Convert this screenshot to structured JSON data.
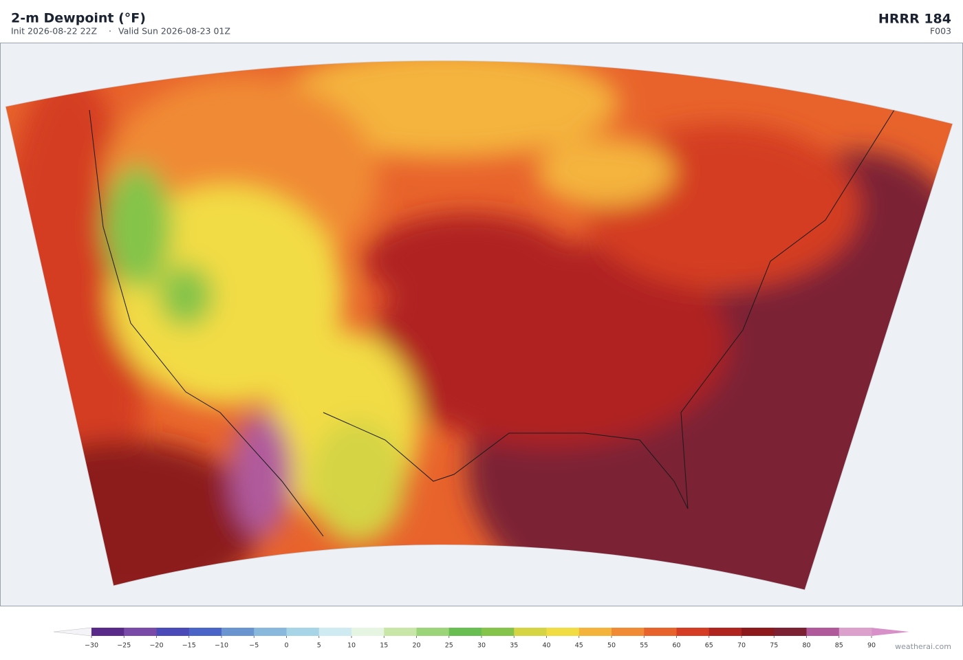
{
  "header": {
    "title": "2-m Dewpoint  (°F)",
    "init": "Init 2026-08-22 22Z",
    "separator": "·",
    "valid": "Valid Sun 2026-08-23 01Z",
    "model": "HRRR  184",
    "forecast": "F003"
  },
  "colorbar": {
    "ticks": [
      {
        "value": -30,
        "label": "−30"
      },
      {
        "value": -25,
        "label": "−25"
      },
      {
        "value": -20,
        "label": "−20"
      },
      {
        "value": -15,
        "label": "−15"
      },
      {
        "value": -10,
        "label": "−10"
      },
      {
        "value": -5,
        "label": "−5"
      },
      0,
      5,
      10,
      15,
      20,
      25,
      30,
      35,
      40,
      45,
      50,
      55,
      60,
      65,
      70,
      75,
      80,
      85,
      90
    ],
    "colors": [
      "#5a2a8a",
      "#7a4aa8",
      "#4a4ab8",
      "#4a64c8",
      "#6a94d0",
      "#88b8dc",
      "#a8d4e8",
      "#d0eaf2",
      "#e6f5e2",
      "#c8e6a8",
      "#9cd47a",
      "#68be50",
      "#84c44a",
      "#d4d444",
      "#f2dc44",
      "#f4b43c",
      "#f08a34",
      "#e8632c",
      "#d43c24",
      "#b02420",
      "#8c1a1c",
      "#7c2034",
      "#b05a9c",
      "#dca0cc"
    ],
    "under_color": "#f4f4f8",
    "over_color": "#d890c8"
  },
  "footer": {
    "credit": "weatherai.com"
  }
}
